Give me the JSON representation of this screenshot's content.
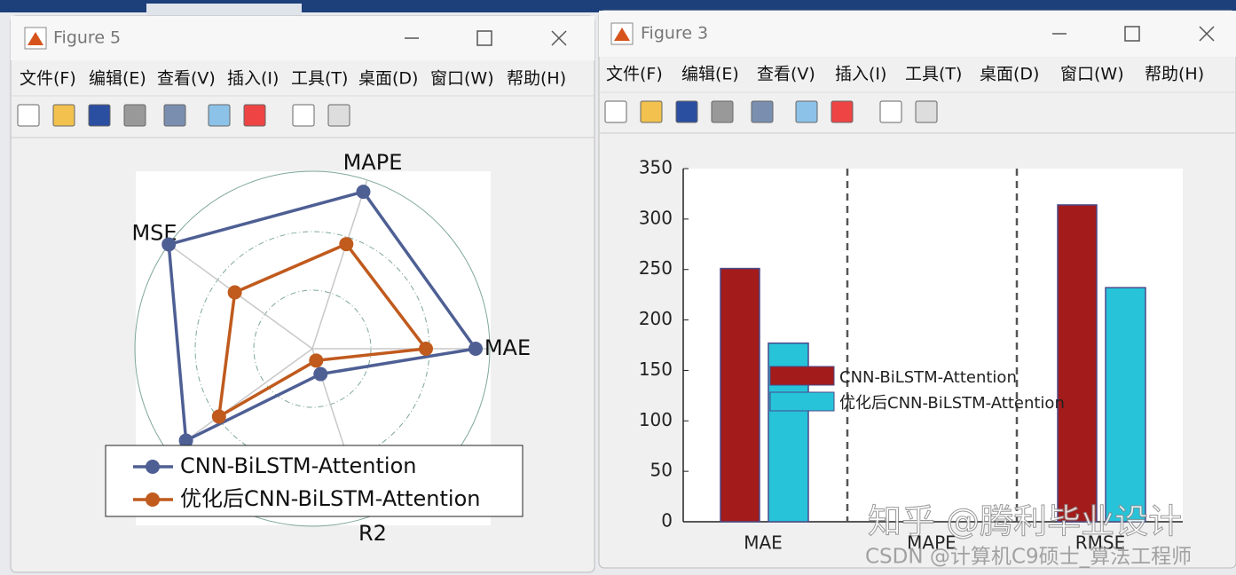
{
  "windows": [
    {
      "title": "Figure 5",
      "menu": [
        "文件(F)",
        "编辑(E)",
        "查看(V)",
        "插入(I)",
        "工具(T)",
        "桌面(D)",
        "窗口(W)",
        "帮助(H)"
      ]
    },
    {
      "title": "Figure 3",
      "menu": [
        "文件(F)",
        "编辑(E)",
        "查看(V)",
        "插入(I)",
        "工具(T)",
        "桌面(D)",
        "窗口(W)",
        "帮助(H)"
      ]
    }
  ],
  "chart_data": [
    {
      "type": "radar",
      "categories": [
        "MAE",
        "MAPE",
        "MSE",
        null,
        "R2"
      ],
      "rlim": [
        0,
        1
      ],
      "rticks": [
        0.33,
        0.66,
        1
      ],
      "series": [
        {
          "name": "CNN-BiLSTM-Attention",
          "color": "#4e5f94",
          "values": [
            0.92,
            0.93,
            1.0,
            0.88,
            0.15
          ]
        },
        {
          "name": "优化后CNN-BiLSTM-Attention",
          "color": "#c05a1d",
          "values": [
            0.64,
            0.62,
            0.54,
            0.65,
            0.07
          ]
        }
      ]
    },
    {
      "type": "bar",
      "categories": [
        "MAE",
        "MAPE",
        "RMSE"
      ],
      "ylim": [
        0,
        350
      ],
      "yticks": [
        0,
        50,
        100,
        150,
        200,
        250,
        300,
        350
      ],
      "series": [
        {
          "name": "CNN-BiLSTM-Attention",
          "color": "#a31b1b",
          "values": [
            251,
            0,
            314
          ]
        },
        {
          "name": "优化后CNN-BiLSTM-Attention",
          "color": "#27c3d9",
          "values": [
            177,
            0,
            232
          ]
        }
      ]
    }
  ],
  "watermark": "知乎 @腾利毕业设计",
  "credit": "CSDN @计算机C9硕士_算法工程师"
}
